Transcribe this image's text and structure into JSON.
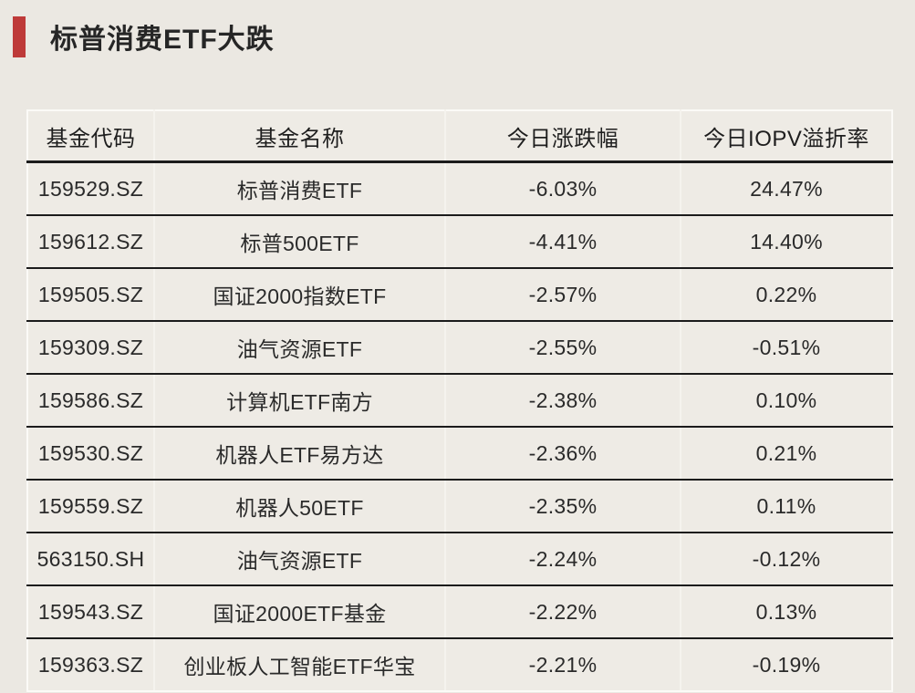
{
  "header": {
    "title": "标普消费ETF大跌",
    "accent_color": "#BE3A39"
  },
  "chart_data": {
    "type": "table",
    "title": "标普消费ETF大跌",
    "columns": [
      "基金代码",
      "基金名称",
      "今日涨跌幅",
      "今日IOPV溢折率"
    ],
    "rows": [
      [
        "159529.SZ",
        "标普消费ETF",
        "-6.03%",
        "24.47%"
      ],
      [
        "159612.SZ",
        "标普500ETF",
        "-4.41%",
        "14.40%"
      ],
      [
        "159505.SZ",
        "国证2000指数ETF",
        "-2.57%",
        "0.22%"
      ],
      [
        "159309.SZ",
        "油气资源ETF",
        "-2.55%",
        "-0.51%"
      ],
      [
        "159586.SZ",
        "计算机ETF南方",
        "-2.38%",
        "0.10%"
      ],
      [
        "159530.SZ",
        "机器人ETF易方达",
        "-2.36%",
        "0.21%"
      ],
      [
        "159559.SZ",
        "机器人50ETF",
        "-2.35%",
        "0.11%"
      ],
      [
        "563150.SH",
        "油气资源ETF",
        "-2.24%",
        "-0.12%"
      ],
      [
        "159543.SZ",
        "国证2000ETF基金",
        "-2.22%",
        "0.13%"
      ],
      [
        "159363.SZ",
        "创业板人工智能ETF华宝",
        "-2.21%",
        "-0.19%"
      ]
    ],
    "colors": {
      "page_background": "#EBE8E2",
      "table_background": "#EEEBE5",
      "row_separator": "#1B1B1B",
      "column_divider": "#F5F3EE",
      "outer_border": "#FBFAF7",
      "text": "#2A2A2A"
    }
  }
}
